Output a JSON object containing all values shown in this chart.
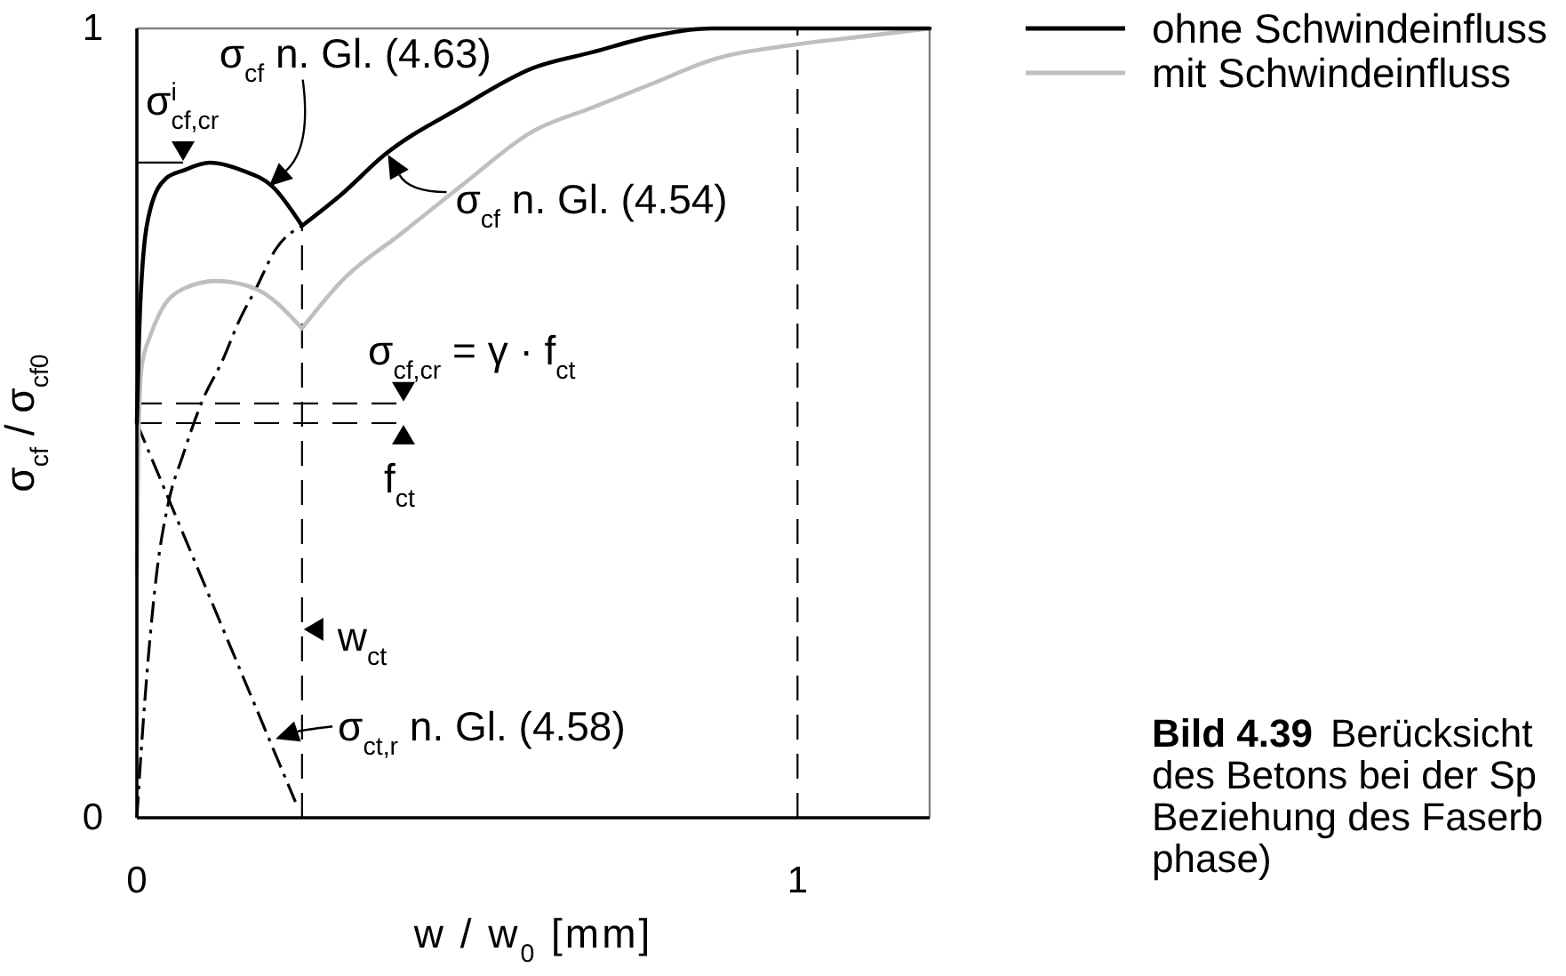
{
  "chart_data": {
    "type": "line",
    "xlabel": "w / w$_{0}$ [mm]",
    "ylabel": "σ$_{cf}$ / σ$_{cf0}$",
    "xlim": [
      0,
      1.2
    ],
    "ylim": [
      0,
      1
    ],
    "xticks": [
      0,
      1
    ],
    "yticks": [
      0,
      1
    ],
    "legend": "top right",
    "series": [
      {
        "name": "ohne Schwindeinfluss",
        "color": "#000000",
        "line_style": "solid",
        "x": [
          0,
          0.003,
          0.007,
          0.02,
          0.044,
          0.07,
          0.11,
          0.16,
          0.205,
          0.25,
          0.31,
          0.375,
          0.49,
          0.6,
          0.69,
          0.78,
          0.87,
          1.2
        ],
        "values": [
          0.5,
          0.6,
          0.68,
          0.77,
          0.81,
          0.82,
          0.83,
          0.82,
          0.8,
          0.75,
          0.79,
          0.84,
          0.9,
          0.95,
          0.97,
          0.99,
          1,
          1
        ]
      },
      {
        "name": "mit Schwindeinfluss",
        "color": "#bfbfbf",
        "line_style": "solid",
        "x": [
          0,
          0.003,
          0.007,
          0.02,
          0.035,
          0.07,
          0.12,
          0.18,
          0.25,
          0.31,
          0.4,
          0.49,
          0.6,
          0.69,
          0.78,
          0.87,
          1,
          1.1,
          1.2
        ],
        "values": [
          0.31,
          0.5,
          0.57,
          0.61,
          0.64,
          0.67,
          0.68,
          0.67,
          0.62,
          0.68,
          0.74,
          0.8,
          0.87,
          0.9,
          0.93,
          0.96,
          0.98,
          0.99,
          1
        ]
      },
      {
        "color": "#000000",
        "line_style": "dashdot",
        "x": [
          0,
          0.007,
          0.017,
          0.03,
          0.048,
          0.07,
          0.1,
          0.13,
          0.155,
          0.18,
          0.21,
          0.25
        ],
        "values": [
          0,
          0.09,
          0.2,
          0.31,
          0.4,
          0.46,
          0.53,
          0.58,
          0.63,
          0.67,
          0.72,
          0.75
        ]
      },
      {
        "color": "#000000",
        "line_style": "dashdot",
        "x": [
          0,
          0.24
        ],
        "values": [
          0.5,
          0.02
        ]
      }
    ],
    "ref_lines": [
      {
        "axis": "y",
        "value": 0.83,
        "label": "σ$^{i}$$_{cf,cr}$",
        "line_style": "solid",
        "color": "#000000"
      },
      {
        "axis": "y",
        "value": 0.525,
        "label": "σ$_{cf,cr}$ = γ · f$_{ct}$",
        "line_style": "dashed",
        "color": "#000000"
      },
      {
        "axis": "y",
        "value": 0.5,
        "label": "f$_{ct}$",
        "line_style": "dashed",
        "color": "#000000"
      },
      {
        "axis": "x",
        "value": 0.25,
        "label": "w$_{ct}$",
        "line_style": "dashed",
        "color": "#000000"
      },
      {
        "axis": "x",
        "value": 1,
        "line_style": "dashed",
        "color": "#000000"
      }
    ],
    "annotations": [
      {
        "text": "σ$_{cf}$ n. Gl. (4.63)",
        "x": 0.2,
        "y": 0.8
      },
      {
        "text": "σ$_{cf}$ n. Gl. (4.54)",
        "x": 0.38,
        "y": 0.84
      },
      {
        "text": "σ$_{ct,r}$ n. Gl. (4.58)",
        "x": 0.21,
        "y": 0.1
      },
      "Bild 4.39  Berücksicht\ndes Betons bei der Sp\nBeziehung des Faserb\nphase)"
    ]
  }
}
